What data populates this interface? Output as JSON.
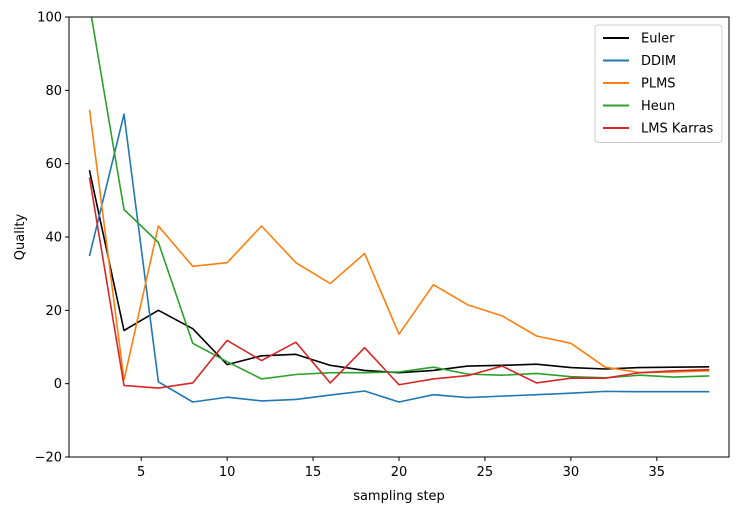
{
  "chart_data": {
    "type": "line",
    "title": "",
    "xlabel": "sampling step",
    "ylabel": "Quality",
    "xlim": [
      0.8,
      39.2
    ],
    "ylim": [
      -20,
      100
    ],
    "xticks": [
      5,
      10,
      15,
      20,
      25,
      30,
      35
    ],
    "yticks": [
      -20,
      0,
      20,
      40,
      60,
      80,
      100
    ],
    "grid": false,
    "legend_position": "top-right",
    "x": [
      2,
      4,
      6,
      8,
      10,
      12,
      14,
      16,
      18,
      20,
      22,
      24,
      26,
      28,
      30,
      32,
      34,
      36,
      38
    ],
    "series": [
      {
        "name": "Euler",
        "color": "#000000",
        "values": [
          58,
          14.5,
          20,
          15,
          5.2,
          7.6,
          8.0,
          5.0,
          3.6,
          3.0,
          3.6,
          4.8,
          5.0,
          5.3,
          4.4,
          4.0,
          4.4,
          4.5,
          4.6
        ]
      },
      {
        "name": "DDIM",
        "color": "#1f77b4",
        "values": [
          35,
          73.5,
          0.5,
          -5,
          -3.7,
          -4.7,
          -4.3,
          -3.1,
          -2.0,
          -5.0,
          -3.0,
          -3.8,
          -3.4,
          -3.0,
          -2.6,
          -2.1,
          -2.2,
          -2.2,
          -2.2
        ]
      },
      {
        "name": "PLMS",
        "color": "#ff7f0e",
        "values": [
          74.5,
          1.0,
          43,
          32,
          33,
          43,
          33,
          27.3,
          35.5,
          13.5,
          27,
          21.5,
          18.5,
          13,
          11,
          4.5,
          3.0,
          3.2,
          3.5
        ]
      },
      {
        "name": "Heun",
        "color": "#2ca02c",
        "values": [
          103,
          47.5,
          38.5,
          11,
          6,
          1.3,
          2.5,
          3.0,
          3.0,
          3.2,
          4.5,
          2.6,
          2.3,
          2.8,
          1.9,
          1.6,
          2.3,
          1.8,
          2.1
        ]
      },
      {
        "name": "LMS Karras",
        "color": "#d62728",
        "values": [
          56,
          -0.5,
          -1.2,
          0.2,
          11.8,
          6.3,
          11.3,
          0.2,
          9.8,
          -0.3,
          1.3,
          2.2,
          4.8,
          0.2,
          1.5,
          1.5,
          3.0,
          3.5,
          3.8
        ]
      }
    ]
  }
}
